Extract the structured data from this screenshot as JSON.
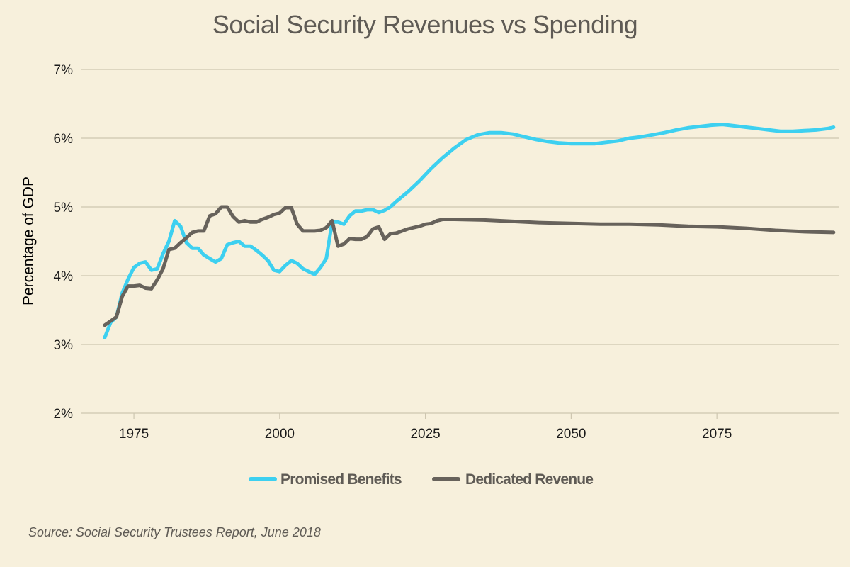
{
  "chart_data": {
    "type": "line",
    "title": "Social Security Revenues vs Spending",
    "xlabel": "",
    "ylabel": "Percentage of GDP",
    "xlim": [
      1966,
      2096
    ],
    "ylim": [
      2,
      7
    ],
    "xticks": [
      1975,
      2000,
      2025,
      2050,
      2075
    ],
    "yticks": [
      2,
      3,
      4,
      5,
      6,
      7
    ],
    "ytick_labels": [
      "2%",
      "3%",
      "4%",
      "5%",
      "6%",
      "7%"
    ],
    "grid": "horizontal",
    "legend_position": "bottom-center",
    "series": [
      {
        "name": "Promised Benefits",
        "color": "#3dd0f0",
        "x": [
          1970,
          1971,
          1972,
          1973,
          1974,
          1975,
          1976,
          1977,
          1978,
          1979,
          1980,
          1981,
          1982,
          1983,
          1984,
          1985,
          1986,
          1987,
          1988,
          1989,
          1990,
          1991,
          1992,
          1993,
          1994,
          1995,
          1996,
          1997,
          1998,
          1999,
          2000,
          2001,
          2002,
          2003,
          2004,
          2005,
          2006,
          2007,
          2008,
          2009,
          2010,
          2011,
          2012,
          2013,
          2014,
          2015,
          2016,
          2017,
          2018,
          2019,
          2020,
          2022,
          2024,
          2026,
          2028,
          2030,
          2032,
          2034,
          2036,
          2038,
          2040,
          2042,
          2044,
          2046,
          2048,
          2050,
          2052,
          2054,
          2056,
          2058,
          2060,
          2062,
          2064,
          2066,
          2068,
          2070,
          2072,
          2074,
          2076,
          2078,
          2080,
          2082,
          2084,
          2086,
          2088,
          2090,
          2092,
          2094,
          2095
        ],
        "values": [
          3.1,
          3.32,
          3.4,
          3.75,
          3.95,
          4.12,
          4.18,
          4.2,
          4.08,
          4.1,
          4.32,
          4.5,
          4.8,
          4.72,
          4.48,
          4.4,
          4.4,
          4.3,
          4.25,
          4.2,
          4.25,
          4.45,
          4.48,
          4.5,
          4.43,
          4.43,
          4.37,
          4.3,
          4.22,
          4.08,
          4.06,
          4.15,
          4.22,
          4.18,
          4.1,
          4.06,
          4.02,
          4.12,
          4.25,
          4.78,
          4.78,
          4.75,
          4.87,
          4.94,
          4.94,
          4.96,
          4.96,
          4.92,
          4.95,
          5.0,
          5.08,
          5.22,
          5.38,
          5.56,
          5.72,
          5.86,
          5.98,
          6.05,
          6.08,
          6.08,
          6.06,
          6.02,
          5.98,
          5.95,
          5.93,
          5.92,
          5.92,
          5.92,
          5.94,
          5.96,
          6.0,
          6.02,
          6.05,
          6.08,
          6.12,
          6.15,
          6.17,
          6.19,
          6.2,
          6.18,
          6.16,
          6.14,
          6.12,
          6.1,
          6.1,
          6.11,
          6.12,
          6.14,
          6.16
        ]
      },
      {
        "name": "Dedicated Revenue",
        "color": "#67625b",
        "x": [
          1970,
          1971,
          1972,
          1973,
          1974,
          1975,
          1976,
          1977,
          1978,
          1979,
          1980,
          1981,
          1982,
          1983,
          1984,
          1985,
          1986,
          1987,
          1988,
          1989,
          1990,
          1991,
          1992,
          1993,
          1994,
          1995,
          1996,
          1997,
          1998,
          1999,
          2000,
          2001,
          2002,
          2003,
          2004,
          2005,
          2006,
          2007,
          2008,
          2009,
          2010,
          2011,
          2012,
          2013,
          2014,
          2015,
          2016,
          2017,
          2018,
          2019,
          2020,
          2022,
          2024,
          2025,
          2026,
          2027,
          2028,
          2030,
          2035,
          2040,
          2045,
          2050,
          2055,
          2060,
          2065,
          2070,
          2075,
          2080,
          2085,
          2090,
          2095
        ],
        "values": [
          3.28,
          3.34,
          3.4,
          3.7,
          3.85,
          3.85,
          3.86,
          3.82,
          3.81,
          3.94,
          4.1,
          4.38,
          4.4,
          4.48,
          4.55,
          4.63,
          4.65,
          4.65,
          4.87,
          4.9,
          5.0,
          5.0,
          4.86,
          4.78,
          4.8,
          4.78,
          4.78,
          4.82,
          4.85,
          4.89,
          4.91,
          4.99,
          4.99,
          4.75,
          4.65,
          4.65,
          4.65,
          4.66,
          4.7,
          4.8,
          4.43,
          4.46,
          4.54,
          4.53,
          4.53,
          4.57,
          4.68,
          4.71,
          4.53,
          4.61,
          4.62,
          4.68,
          4.72,
          4.75,
          4.76,
          4.8,
          4.82,
          4.82,
          4.81,
          4.79,
          4.77,
          4.76,
          4.75,
          4.75,
          4.74,
          4.72,
          4.71,
          4.69,
          4.66,
          4.64,
          4.63
        ]
      }
    ]
  },
  "source_note": "Source: Social Security Trustees Report, June 2018"
}
